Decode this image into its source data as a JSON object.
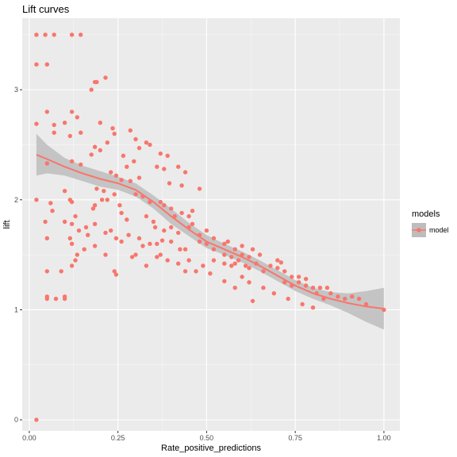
{
  "chart_data": {
    "type": "scatter",
    "title": "Lift curves",
    "xlabel": "Rate_positive_predictions",
    "ylabel": "lift",
    "xlim": [
      -0.02,
      1.045
    ],
    "ylim": [
      -0.1,
      3.65
    ],
    "x_ticks": [
      0.0,
      0.25,
      0.5,
      0.75,
      1.0
    ],
    "x_tick_labels": [
      "0.00",
      "0.25",
      "0.50",
      "0.75",
      "1.00"
    ],
    "y_ticks": [
      0,
      1,
      2,
      3
    ],
    "y_tick_labels": [
      "0",
      "1",
      "2",
      "3"
    ],
    "grid": true,
    "legend": {
      "title": "models",
      "placement": "right",
      "entries": [
        "model"
      ]
    },
    "colors": {
      "point": "#f8766d",
      "smooth": "#f8766d",
      "band": "#bdbdbd",
      "panel": "#ebebeb",
      "grid": "#ffffff"
    },
    "series": [
      {
        "name": "model",
        "points": [
          [
            0.02,
            3.5
          ],
          [
            0.045,
            3.5
          ],
          [
            0.07,
            3.5
          ],
          [
            0.12,
            3.5
          ],
          [
            0.145,
            3.5
          ],
          [
            0.02,
            3.23
          ],
          [
            0.05,
            3.23
          ],
          [
            0.185,
            3.07
          ],
          [
            0.19,
            3.07
          ],
          [
            0.215,
            3.11
          ],
          [
            0.175,
            3.0
          ],
          [
            0.05,
            2.8
          ],
          [
            0.12,
            2.8
          ],
          [
            0.07,
            2.68
          ],
          [
            0.02,
            2.69
          ],
          [
            0.07,
            2.61
          ],
          [
            0.145,
            2.61
          ],
          [
            0.1,
            2.7
          ],
          [
            0.24,
            2.6
          ],
          [
            0.115,
            2.58
          ],
          [
            0.2,
            2.7
          ],
          [
            0.235,
            2.65
          ],
          [
            0.285,
            2.63
          ],
          [
            0.135,
            2.75
          ],
          [
            0.22,
            2.52
          ],
          [
            0.3,
            2.55
          ],
          [
            0.12,
            2.35
          ],
          [
            0.05,
            2.33
          ],
          [
            0.145,
            2.32
          ],
          [
            0.185,
            2.48
          ],
          [
            0.175,
            2.41
          ],
          [
            0.2,
            2.45
          ],
          [
            0.275,
            2.3
          ],
          [
            0.265,
            2.4
          ],
          [
            0.31,
            2.47
          ],
          [
            0.33,
            2.52
          ],
          [
            0.34,
            2.5
          ],
          [
            0.37,
            2.42
          ],
          [
            0.39,
            2.4
          ],
          [
            0.38,
            2.28
          ],
          [
            0.295,
            2.35
          ],
          [
            0.23,
            2.25
          ],
          [
            0.245,
            2.22
          ],
          [
            0.26,
            2.18
          ],
          [
            0.285,
            2.17
          ],
          [
            0.31,
            2.2
          ],
          [
            0.36,
            2.3
          ],
          [
            0.42,
            2.3
          ],
          [
            0.44,
            2.25
          ],
          [
            0.43,
            2.13
          ],
          [
            0.395,
            2.15
          ],
          [
            0.3,
            2.05
          ],
          [
            0.32,
            2.03
          ],
          [
            0.34,
            1.98
          ],
          [
            0.37,
            1.98
          ],
          [
            0.38,
            1.95
          ],
          [
            0.4,
            1.92
          ],
          [
            0.41,
            1.85
          ],
          [
            0.43,
            1.88
          ],
          [
            0.45,
            1.85
          ],
          [
            0.48,
            2.1
          ],
          [
            0.46,
            1.9
          ],
          [
            0.19,
            2.1
          ],
          [
            0.21,
            2.08
          ],
          [
            0.205,
            2.0
          ],
          [
            0.22,
            2.0
          ],
          [
            0.185,
            1.95
          ],
          [
            0.24,
            2.05
          ],
          [
            0.255,
            1.95
          ],
          [
            0.26,
            1.88
          ],
          [
            0.275,
            1.82
          ],
          [
            0.33,
            1.85
          ],
          [
            0.35,
            1.8
          ],
          [
            0.355,
            1.75
          ],
          [
            0.38,
            1.72
          ],
          [
            0.4,
            1.75
          ],
          [
            0.42,
            1.7
          ],
          [
            0.45,
            1.75
          ],
          [
            0.46,
            1.78
          ],
          [
            0.48,
            1.68
          ],
          [
            0.5,
            1.72
          ],
          [
            0.48,
            1.62
          ],
          [
            0.5,
            1.6
          ],
          [
            0.52,
            1.65
          ],
          [
            0.52,
            1.55
          ],
          [
            0.55,
            1.6
          ],
          [
            0.56,
            1.62
          ],
          [
            0.58,
            1.55
          ],
          [
            0.6,
            1.58
          ],
          [
            0.55,
            1.5
          ],
          [
            0.57,
            1.48
          ],
          [
            0.59,
            1.45
          ],
          [
            0.6,
            1.5
          ],
          [
            0.62,
            1.48
          ],
          [
            0.63,
            1.55
          ],
          [
            0.65,
            1.5
          ],
          [
            0.55,
            1.42
          ],
          [
            0.57,
            1.4
          ],
          [
            0.58,
            1.42
          ],
          [
            0.61,
            1.4
          ],
          [
            0.62,
            1.38
          ],
          [
            0.64,
            1.42
          ],
          [
            0.66,
            1.35
          ],
          [
            0.68,
            1.4
          ],
          [
            0.7,
            1.38
          ],
          [
            0.72,
            1.35
          ],
          [
            0.7,
            1.45
          ],
          [
            0.71,
            1.43
          ],
          [
            0.74,
            1.3
          ],
          [
            0.76,
            1.3
          ],
          [
            0.78,
            1.28
          ],
          [
            0.72,
            1.25
          ],
          [
            0.74,
            1.22
          ],
          [
            0.76,
            1.25
          ],
          [
            0.78,
            1.22
          ],
          [
            0.8,
            1.2
          ],
          [
            0.82,
            1.2
          ],
          [
            0.84,
            1.2
          ],
          [
            0.81,
            1.15
          ],
          [
            0.83,
            1.1
          ],
          [
            0.85,
            1.15
          ],
          [
            0.87,
            1.12
          ],
          [
            0.89,
            1.1
          ],
          [
            0.91,
            1.12
          ],
          [
            0.93,
            1.1
          ],
          [
            0.95,
            1.05
          ],
          [
            1.0,
            1.0
          ],
          [
            0.66,
            1.2
          ],
          [
            0.62,
            1.25
          ],
          [
            0.6,
            1.3
          ],
          [
            0.58,
            1.2
          ],
          [
            0.63,
            1.08
          ],
          [
            0.69,
            1.15
          ],
          [
            0.73,
            1.1
          ],
          [
            0.77,
            1.05
          ],
          [
            0.8,
            1.02
          ],
          [
            0.55,
            1.26
          ],
          [
            0.51,
            1.33
          ],
          [
            0.49,
            1.4
          ],
          [
            0.47,
            1.35
          ],
          [
            0.42,
            1.42
          ],
          [
            0.45,
            1.45
          ],
          [
            0.52,
            1.45
          ],
          [
            0.1,
            2.08
          ],
          [
            0.12,
            1.98
          ],
          [
            0.115,
            2.0
          ],
          [
            0.13,
            1.85
          ],
          [
            0.1,
            1.8
          ],
          [
            0.12,
            1.78
          ],
          [
            0.06,
            1.97
          ],
          [
            0.065,
            1.9
          ],
          [
            0.045,
            1.8
          ],
          [
            0.02,
            2.0
          ],
          [
            0.18,
            1.92
          ],
          [
            0.185,
            1.78
          ],
          [
            0.16,
            1.75
          ],
          [
            0.165,
            1.68
          ],
          [
            0.14,
            1.72
          ],
          [
            0.155,
            1.55
          ],
          [
            0.135,
            1.5
          ],
          [
            0.13,
            1.45
          ],
          [
            0.185,
            1.58
          ],
          [
            0.215,
            1.7
          ],
          [
            0.23,
            1.72
          ],
          [
            0.245,
            1.65
          ],
          [
            0.28,
            1.68
          ],
          [
            0.31,
            1.65
          ],
          [
            0.32,
            1.58
          ],
          [
            0.34,
            1.6
          ],
          [
            0.36,
            1.6
          ],
          [
            0.375,
            1.63
          ],
          [
            0.4,
            1.62
          ],
          [
            0.425,
            1.55
          ],
          [
            0.44,
            1.55
          ],
          [
            0.37,
            1.5
          ],
          [
            0.36,
            1.48
          ],
          [
            0.39,
            1.45
          ],
          [
            0.3,
            1.5
          ],
          [
            0.29,
            1.48
          ],
          [
            0.26,
            1.62
          ],
          [
            0.215,
            1.5
          ],
          [
            0.05,
            1.65
          ],
          [
            0.115,
            1.65
          ],
          [
            0.12,
            1.6
          ],
          [
            0.09,
            1.35
          ],
          [
            0.12,
            1.4
          ],
          [
            0.05,
            1.35
          ],
          [
            0.05,
            1.12
          ],
          [
            0.05,
            1.1
          ],
          [
            0.075,
            1.1
          ],
          [
            0.1,
            1.12
          ],
          [
            0.1,
            1.1
          ],
          [
            0.24,
            1.35
          ],
          [
            0.245,
            1.32
          ],
          [
            0.33,
            1.4
          ],
          [
            0.44,
            1.35
          ],
          [
            0.02,
            0.0
          ]
        ],
        "smooth": [
          [
            0.02,
            2.41
          ],
          [
            0.05,
            2.37
          ],
          [
            0.1,
            2.3
          ],
          [
            0.15,
            2.24
          ],
          [
            0.2,
            2.19
          ],
          [
            0.25,
            2.15
          ],
          [
            0.3,
            2.09
          ],
          [
            0.35,
            1.98
          ],
          [
            0.4,
            1.85
          ],
          [
            0.45,
            1.73
          ],
          [
            0.5,
            1.62
          ],
          [
            0.55,
            1.55
          ],
          [
            0.6,
            1.48
          ],
          [
            0.65,
            1.4
          ],
          [
            0.7,
            1.31
          ],
          [
            0.75,
            1.22
          ],
          [
            0.8,
            1.15
          ],
          [
            0.85,
            1.1
          ],
          [
            0.9,
            1.06
          ],
          [
            0.95,
            1.03
          ],
          [
            1.0,
            1.01
          ]
        ],
        "band_upper": [
          [
            0.02,
            2.6
          ],
          [
            0.05,
            2.5
          ],
          [
            0.1,
            2.38
          ],
          [
            0.15,
            2.31
          ],
          [
            0.2,
            2.26
          ],
          [
            0.25,
            2.21
          ],
          [
            0.3,
            2.15
          ],
          [
            0.35,
            2.04
          ],
          [
            0.4,
            1.92
          ],
          [
            0.45,
            1.79
          ],
          [
            0.5,
            1.68
          ],
          [
            0.55,
            1.6
          ],
          [
            0.6,
            1.53
          ],
          [
            0.65,
            1.45
          ],
          [
            0.7,
            1.36
          ],
          [
            0.75,
            1.27
          ],
          [
            0.8,
            1.2
          ],
          [
            0.85,
            1.16
          ],
          [
            0.9,
            1.15
          ],
          [
            0.95,
            1.17
          ],
          [
            1.0,
            1.2
          ]
        ],
        "band_lower": [
          [
            0.02,
            2.22
          ],
          [
            0.05,
            2.24
          ],
          [
            0.1,
            2.22
          ],
          [
            0.15,
            2.17
          ],
          [
            0.2,
            2.12
          ],
          [
            0.25,
            2.09
          ],
          [
            0.3,
            2.03
          ],
          [
            0.35,
            1.92
          ],
          [
            0.4,
            1.78
          ],
          [
            0.45,
            1.67
          ],
          [
            0.5,
            1.56
          ],
          [
            0.55,
            1.5
          ],
          [
            0.6,
            1.43
          ],
          [
            0.65,
            1.35
          ],
          [
            0.7,
            1.26
          ],
          [
            0.75,
            1.17
          ],
          [
            0.8,
            1.1
          ],
          [
            0.85,
            1.04
          ],
          [
            0.9,
            0.97
          ],
          [
            0.95,
            0.89
          ],
          [
            1.0,
            0.82
          ]
        ]
      }
    ]
  }
}
